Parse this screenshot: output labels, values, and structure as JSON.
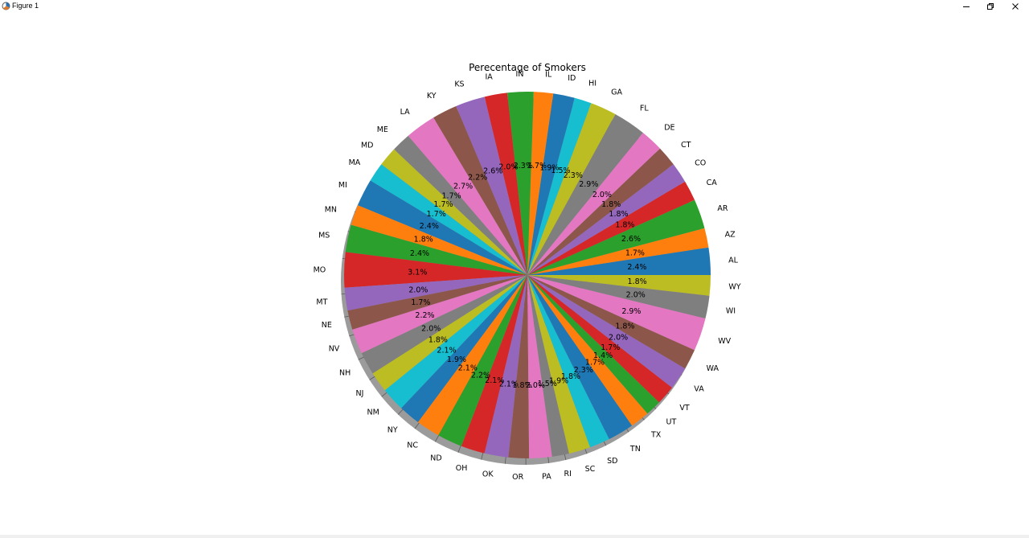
{
  "window": {
    "title": "Figure 1",
    "icon": "matplotlib-figure-icon"
  },
  "controls": {
    "minimize_icon": "minimize-icon",
    "maximize_icon": "restore-icon",
    "close_icon": "close-icon"
  },
  "chart_data": {
    "type": "pie",
    "title": "Perecentage of Smokers",
    "shadow": true,
    "autopct": "%1.1f%%",
    "colors": [
      "#1f77b4",
      "#ff7f0e",
      "#2ca02c",
      "#d62728",
      "#9467bd",
      "#8c564b",
      "#e377c2",
      "#7f7f7f",
      "#bcbd22",
      "#17becf"
    ],
    "categories": [
      "AL",
      "AZ",
      "AR",
      "CA",
      "CO",
      "CT",
      "DE",
      "FL",
      "GA",
      "HI",
      "ID",
      "IL",
      "IN",
      "IA",
      "KS",
      "KY",
      "LA",
      "ME",
      "MD",
      "MA",
      "MI",
      "MN",
      "MS",
      "MO",
      "MT",
      "NE",
      "NV",
      "NH",
      "NJ",
      "NM",
      "NY",
      "NC",
      "ND",
      "OH",
      "OK",
      "OR",
      "PA",
      "RI",
      "SC",
      "SD",
      "TN",
      "TX",
      "UT",
      "VT",
      "VA",
      "WA",
      "WV",
      "WI",
      "WY"
    ],
    "values": [
      2.4,
      1.7,
      2.6,
      1.8,
      1.8,
      1.8,
      2.0,
      2.9,
      2.3,
      1.5,
      1.9,
      1.7,
      2.3,
      2.0,
      2.6,
      2.2,
      2.7,
      1.7,
      1.7,
      1.7,
      2.4,
      1.8,
      2.4,
      3.1,
      2.0,
      1.7,
      2.2,
      2.0,
      1.8,
      2.1,
      1.9,
      2.1,
      2.2,
      2.1,
      2.1,
      1.8,
      2.0,
      1.5,
      1.9,
      1.8,
      2.3,
      1.7,
      1.4,
      1.7,
      2.0,
      1.8,
      2.9,
      2.0,
      1.8
    ],
    "labels": [
      "2.4%",
      "1.7%",
      "2.6%",
      "1.8%",
      "1.8%",
      "1.8%",
      "2.0%",
      "2.9%",
      "2.3%",
      "1.5%",
      "1.9%",
      "1.7%",
      "2.3%",
      "2.0%",
      "2.6%",
      "2.2%",
      "2.7%",
      "1.7%",
      "1.7%",
      "1.7%",
      "2.4%",
      "1.8%",
      "2.4%",
      "3.1%",
      "2.0%",
      "1.7%",
      "2.2%",
      "2.0%",
      "1.8%",
      "2.1%",
      "1.9%",
      "2.1%",
      "2.2%",
      "2.1%",
      "2.1%",
      "1.8%",
      "2.0%",
      "1.5%",
      "1.9%",
      "1.8%",
      "2.3%",
      "1.7%",
      "1.4%",
      "1.7%",
      "2.0%",
      "1.8%",
      "2.9%",
      "2.0%",
      "1.8%"
    ]
  }
}
